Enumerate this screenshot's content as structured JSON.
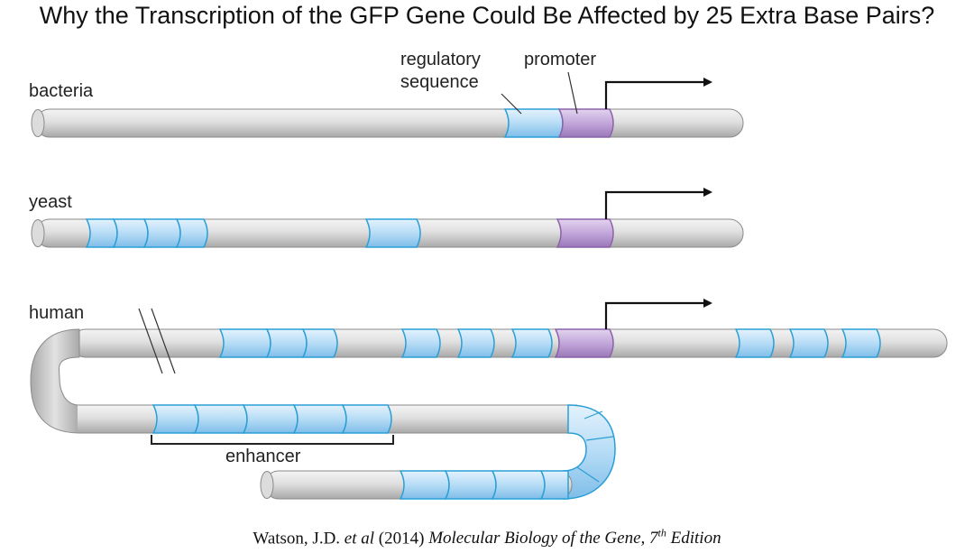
{
  "title": "Why the Transcription of the GFP Gene Could Be Affected by 25 Extra Base Pairs?",
  "labels": {
    "bacteria": "bacteria",
    "yeast": "yeast",
    "human": "human",
    "regulatory_line1": "regulatory",
    "regulatory_line2": "sequence",
    "promoter": "promoter",
    "enhancer": "enhancer"
  },
  "citation": {
    "author": "Watson, J.D. ",
    "etal": "et al",
    "year": " (2014) ",
    "book": "Molecular Biology of the Gene, 7",
    "sup": "th",
    "edition": " Edition"
  },
  "colors": {
    "dna": "#cfcfcf",
    "regulatory": "#9fcdf0",
    "regulatory_stroke": "#1f9fd8",
    "promoter": "#b99bd0",
    "promoter_stroke": "#8a63a8"
  }
}
